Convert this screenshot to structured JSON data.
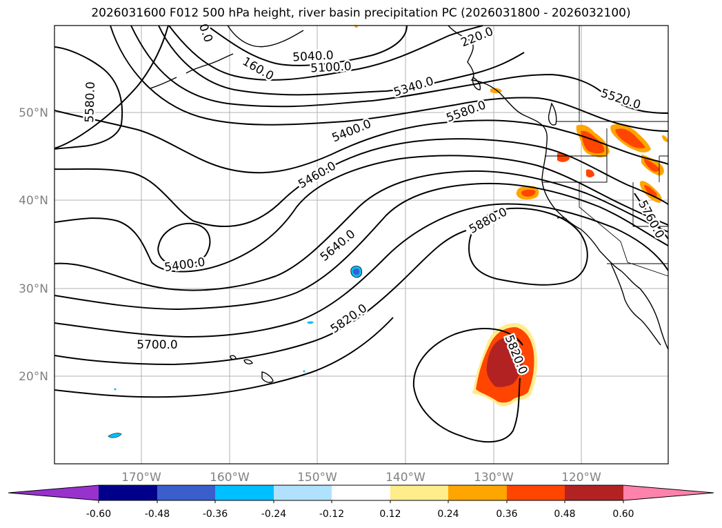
{
  "title": "2026031600 F012 500 hPa height, river basin precipitation PC (2026031800 - 2026032100)",
  "latitude_labels": [
    "50°N",
    "40°N",
    "30°N",
    "20°N"
  ],
  "longitude_labels": [
    "170°W",
    "160°W",
    "150°W",
    "140°W",
    "130°W",
    "120°W"
  ],
  "contour_labels": [
    {
      "text": "5580.0",
      "rot": -88
    },
    {
      "text": "0.0",
      "rot": 70
    },
    {
      "text": "160.0",
      "rot": 30
    },
    {
      "text": "5040.0",
      "rot": -3
    },
    {
      "text": "5100.0",
      "rot": -3
    },
    {
      "text": "220.0",
      "rot": -22
    },
    {
      "text": "5340.0",
      "rot": -17
    },
    {
      "text": "5520.0",
      "rot": 18
    },
    {
      "text": "5580.0",
      "rot": -20
    },
    {
      "text": "5400.0",
      "rot": -22
    },
    {
      "text": "5460.0",
      "rot": -30
    },
    {
      "text": "5400.0",
      "rot": -8
    },
    {
      "text": "5640.0",
      "rot": -40
    },
    {
      "text": "5880.0",
      "rot": -28
    },
    {
      "text": "5760.0",
      "rot": 62
    },
    {
      "text": "5820.0",
      "rot": -35
    },
    {
      "text": "5700.0",
      "rot": 0
    },
    {
      "text": "5820.0",
      "rot": 68
    }
  ],
  "colorbar": {
    "tick_labels": [
      "-0.60",
      "-0.48",
      "-0.36",
      "-0.24",
      "-0.12",
      "0.12",
      "0.24",
      "0.36",
      "0.48",
      "0.60"
    ],
    "colors": [
      "#9932cc",
      "#00008b",
      "#3a5fcd",
      "#00bfff",
      "#b0e2ff",
      "#ffffff",
      "#ffec8b",
      "#ffa500",
      "#ff4500",
      "#b22222",
      "#ff82ab"
    ]
  },
  "colors": {
    "gridline": "#b0b0b0",
    "axis_label": "#808080",
    "contour": "#000000"
  }
}
